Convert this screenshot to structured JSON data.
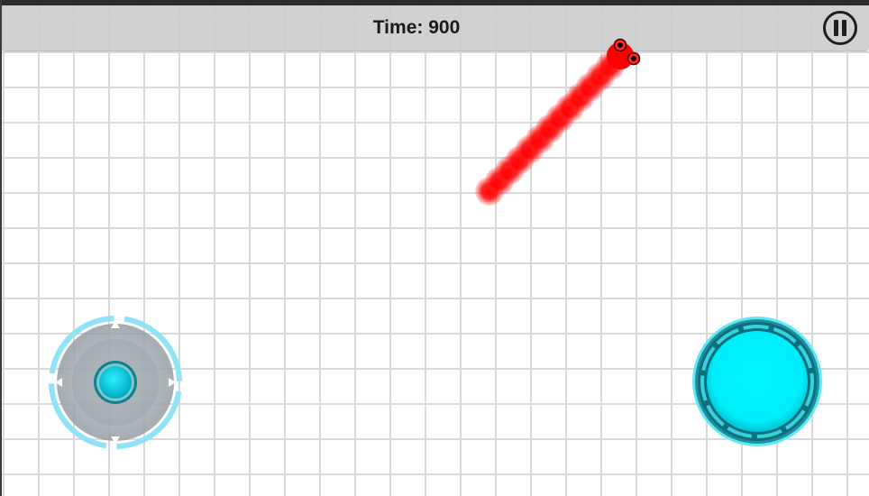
{
  "hud": {
    "time_label": "Time:",
    "time_value": "900"
  },
  "icons": {
    "pause": "pause-icon",
    "joystick_arrows": [
      "arrow-up-icon",
      "arrow-down-icon",
      "arrow-left-icon",
      "arrow-right-icon"
    ]
  },
  "colors": {
    "snake": "#ff0000",
    "snake_eye": "#7a0000",
    "joystick_ring": "#8fe3f7",
    "joystick_base": "#9aa3a8",
    "joystick_knob": "#00c8d8",
    "action_button": "#00eefc",
    "action_button_ring": "#27c2d0",
    "hud_bar": "#cdcdcd",
    "grid_line": "#d9d9d9"
  }
}
